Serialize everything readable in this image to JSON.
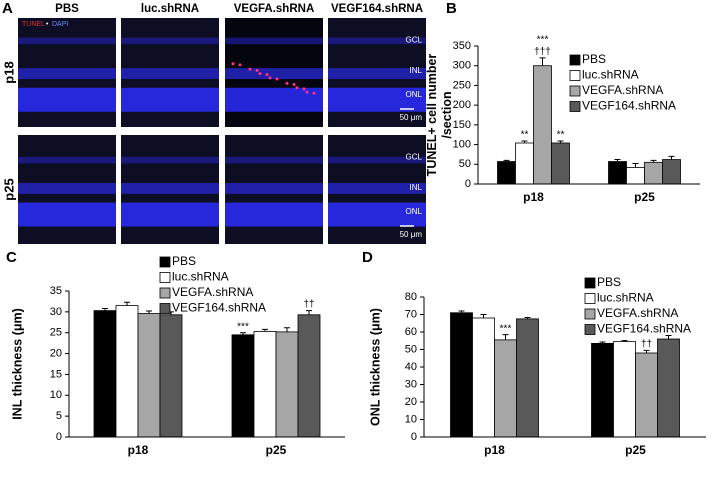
{
  "panel_a": {
    "label": "A",
    "legend": {
      "tunel": "TUNEL",
      "dot": "•",
      "dapi": "DAPI"
    },
    "columns": [
      "PBS",
      "luc.shRNA",
      "VEGFA.shRNA",
      "VEGF164.shRNA"
    ],
    "rows": [
      {
        "label": "p18",
        "layers": [
          "GCL",
          "INL",
          "ONL"
        ],
        "scale": "50 μm"
      },
      {
        "label": "p25",
        "layers": [
          "GCL",
          "INL",
          "ONL"
        ],
        "scale": "50 μm"
      }
    ]
  },
  "chart_data": [
    {
      "type": "bar",
      "panel_label": "B",
      "y_label": [
        "TUNEL+ cell number",
        "/section"
      ],
      "categories": [
        "p18",
        "p25"
      ],
      "series": [
        {
          "name": "PBS",
          "color": "#000000",
          "values": [
            57,
            57
          ],
          "errors": [
            3,
            5
          ],
          "annotations": [
            null,
            null
          ]
        },
        {
          "name": "luc.shRNA",
          "color": "#ffffff",
          "values": [
            104,
            42
          ],
          "errors": [
            5,
            10
          ],
          "annotations": [
            [
              "**"
            ],
            null
          ]
        },
        {
          "name": "VEGFA.shRNA",
          "color": "#a6a6a6",
          "values": [
            300,
            55
          ],
          "errors": [
            20,
            5
          ],
          "annotations": [
            [
              "***",
              "†††"
            ],
            null
          ]
        },
        {
          "name": "VEGF164.shRNA",
          "color": "#595959",
          "values": [
            104,
            62
          ],
          "errors": [
            5,
            8
          ],
          "annotations": [
            [
              "**"
            ],
            null
          ]
        }
      ],
      "ylim": [
        0,
        350
      ],
      "yticks": [
        0,
        50,
        100,
        150,
        200,
        250,
        300,
        350
      ]
    },
    {
      "type": "bar",
      "panel_label": "C",
      "y_label": [
        "INL thickness (μm)"
      ],
      "categories": [
        "p18",
        "p25"
      ],
      "series": [
        {
          "name": "PBS",
          "color": "#000000",
          "values": [
            30.3,
            24.5
          ],
          "errors": [
            0.5,
            0.5
          ],
          "annotations": [
            null,
            [
              "***"
            ]
          ]
        },
        {
          "name": "luc.shRNA",
          "color": "#ffffff",
          "values": [
            31.5,
            25.3
          ],
          "errors": [
            0.8,
            0.5
          ],
          "annotations": [
            null,
            null
          ]
        },
        {
          "name": "VEGFA.shRNA",
          "color": "#a6a6a6",
          "values": [
            29.6,
            25.2
          ],
          "errors": [
            0.6,
            1
          ],
          "annotations": [
            null,
            null
          ]
        },
        {
          "name": "VEGF164.shRNA",
          "color": "#595959",
          "values": [
            29.3,
            29.3
          ],
          "errors": [
            0.7,
            1
          ],
          "annotations": [
            null,
            [
              "††"
            ]
          ]
        }
      ],
      "ylim": [
        0,
        35
      ],
      "yticks": [
        0,
        5,
        10,
        15,
        20,
        25,
        30,
        35
      ]
    },
    {
      "type": "bar",
      "panel_label": "D",
      "y_label": [
        "ONL thickness (μm)"
      ],
      "categories": [
        "p18",
        "p25"
      ],
      "series": [
        {
          "name": "PBS",
          "color": "#000000",
          "values": [
            71,
            53.5
          ],
          "errors": [
            1,
            0.8
          ],
          "annotations": [
            null,
            null
          ]
        },
        {
          "name": "luc.shRNA",
          "color": "#ffffff",
          "values": [
            68,
            54.5
          ],
          "errors": [
            2,
            0.6
          ],
          "annotations": [
            null,
            null
          ]
        },
        {
          "name": "VEGFA.shRNA",
          "color": "#a6a6a6",
          "values": [
            55.5,
            48
          ],
          "errors": [
            3,
            1.5
          ],
          "annotations": [
            [
              "***"
            ],
            [
              "††"
            ]
          ]
        },
        {
          "name": "VEGF164.shRNA",
          "color": "#595959",
          "values": [
            67.5,
            56
          ],
          "errors": [
            0.8,
            2
          ],
          "annotations": [
            null,
            null
          ]
        }
      ],
      "ylim": [
        0,
        80
      ],
      "yticks": [
        0,
        10,
        20,
        30,
        40,
        50,
        60,
        70,
        80
      ]
    }
  ]
}
